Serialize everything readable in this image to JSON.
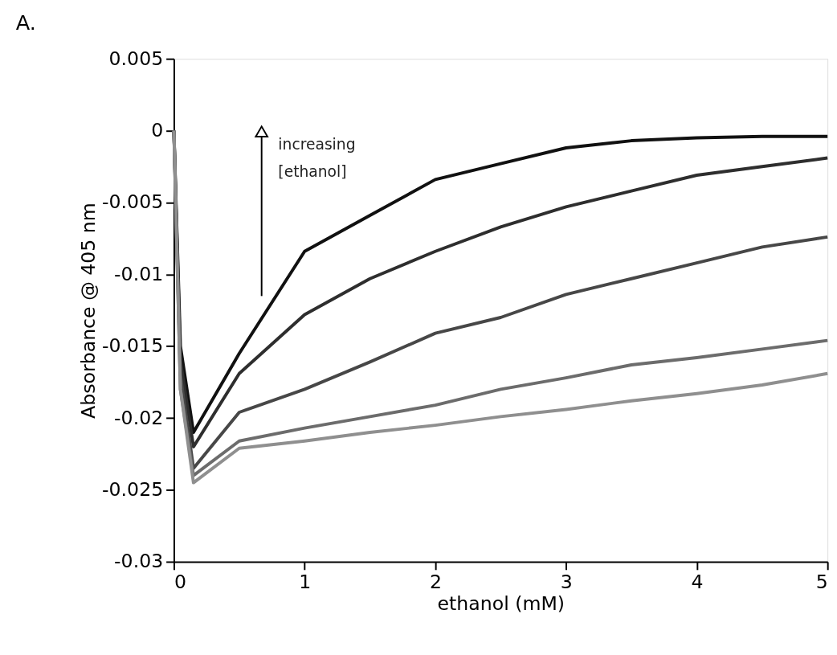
{
  "chart_data": {
    "type": "line",
    "title": "A.",
    "xlabel": "ethanol (mM)",
    "ylabel": "Absorbance @ 405 nm",
    "xlim": [
      0,
      5
    ],
    "xticks": [
      0,
      1,
      2,
      3,
      4,
      5
    ],
    "ylim": [
      -0.03,
      0.005
    ],
    "yticks": [
      -0.03,
      -0.025,
      -0.02,
      -0.015,
      -0.01,
      -0.005,
      0,
      0.005
    ],
    "grid": false,
    "legend": false,
    "x": [
      0,
      0.05,
      0.15,
      0.5,
      1,
      1.5,
      2,
      2.5,
      3,
      3.5,
      4,
      4.5,
      5
    ],
    "series": [
      {
        "color": "#111111",
        "values": [
          0,
          -0.015,
          -0.021,
          -0.0155,
          -0.0084,
          -0.0059,
          -0.0034,
          -0.0023,
          -0.0012,
          -0.0007,
          -0.0005,
          -0.0004,
          -0.0004
        ]
      },
      {
        "color": "#2e2e2e",
        "values": [
          0,
          -0.016,
          -0.022,
          -0.0169,
          -0.0128,
          -0.0103,
          -0.0084,
          -0.0067,
          -0.0053,
          -0.0042,
          -0.0031,
          -0.0025,
          -0.0019
        ]
      },
      {
        "color": "#474747",
        "values": [
          0,
          -0.017,
          -0.0235,
          -0.0196,
          -0.018,
          -0.0161,
          -0.0141,
          -0.013,
          -0.0114,
          -0.0103,
          -0.0092,
          -0.0081,
          -0.0074
        ]
      },
      {
        "color": "#6c6c6c",
        "values": [
          0,
          -0.018,
          -0.024,
          -0.0216,
          -0.0207,
          -0.0199,
          -0.0191,
          -0.018,
          -0.0172,
          -0.0163,
          -0.0158,
          -0.0152,
          -0.0146
        ]
      },
      {
        "color": "#8f8f8f",
        "values": [
          0,
          -0.018,
          -0.0245,
          -0.0221,
          -0.0216,
          -0.021,
          -0.0205,
          -0.0199,
          -0.0194,
          -0.0188,
          -0.0183,
          -0.0177,
          -0.0169
        ]
      }
    ],
    "annotations": [
      "increasing [ethanol]"
    ]
  }
}
